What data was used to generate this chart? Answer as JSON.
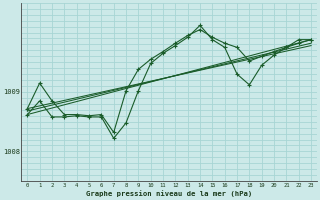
{
  "title": "Graphe pression niveau de la mer (hPa)",
  "bg_color": "#cce9e8",
  "grid_color": "#a8d5d4",
  "line_color": "#1a5c2a",
  "x_ticks": [
    0,
    1,
    2,
    3,
    4,
    5,
    6,
    7,
    8,
    9,
    10,
    11,
    12,
    13,
    14,
    15,
    16,
    17,
    18,
    19,
    20,
    21,
    22,
    23
  ],
  "y_ticks": [
    1008,
    1009
  ],
  "ylim": [
    1007.5,
    1010.5
  ],
  "xlim": [
    -0.5,
    23.5
  ],
  "series1": [
    1008.72,
    1009.15,
    1008.85,
    1008.62,
    1008.62,
    1008.6,
    1008.62,
    1008.32,
    1009.02,
    1009.38,
    1009.55,
    1009.68,
    1009.82,
    1009.95,
    1010.05,
    1009.92,
    1009.82,
    1009.75,
    1009.52,
    1009.6,
    1009.68,
    1009.75,
    1009.82,
    1009.88
  ],
  "series2": [
    1008.62,
    1008.85,
    1008.58,
    1008.58,
    1008.6,
    1008.58,
    1008.58,
    1008.22,
    1008.48,
    1009.02,
    1009.48,
    1009.65,
    1009.78,
    1009.92,
    1010.12,
    1009.88,
    1009.75,
    1009.3,
    1009.12,
    1009.45,
    1009.62,
    1009.75,
    1009.88,
    1009.88
  ],
  "trend1_x": [
    0,
    23
  ],
  "trend1_y": [
    1008.62,
    1009.88
  ],
  "trend2_x": [
    0,
    23
  ],
  "trend2_y": [
    1008.68,
    1009.82
  ],
  "trend3_x": [
    0,
    23
  ],
  "trend3_y": [
    1008.72,
    1009.78
  ]
}
